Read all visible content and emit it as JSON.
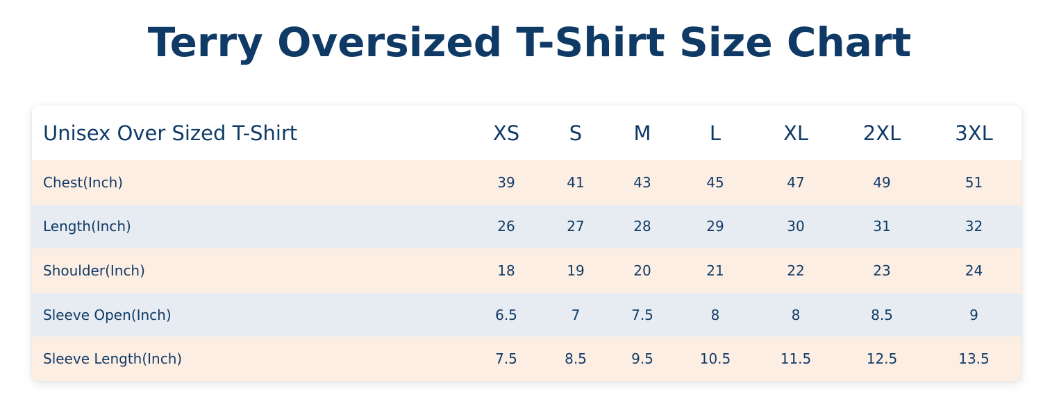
{
  "title": "Terry Oversized T-Shirt Size Chart",
  "table": {
    "header_label": "Unisex Over Sized T-Shirt",
    "sizes": [
      "XS",
      "S",
      "M",
      "L",
      "XL",
      "2XL",
      "3XL"
    ],
    "rows": [
      {
        "label": "Chest(Inch)",
        "values": [
          "39",
          "41",
          "43",
          "45",
          "47",
          "49",
          "51"
        ]
      },
      {
        "label": "Length(Inch)",
        "values": [
          "26",
          "27",
          "28",
          "29",
          "30",
          "31",
          "32"
        ]
      },
      {
        "label": "Shoulder(Inch)",
        "values": [
          "18",
          "19",
          "20",
          "21",
          "22",
          "23",
          "24"
        ]
      },
      {
        "label": "Sleeve Open(Inch)",
        "values": [
          "6.5",
          "7",
          "7.5",
          "8",
          "8",
          "8.5",
          "9"
        ]
      },
      {
        "label": "Sleeve Length(Inch)",
        "values": [
          "7.5",
          "8.5",
          "9.5",
          "10.5",
          "11.5",
          "12.5",
          "13.5"
        ]
      }
    ]
  },
  "colors": {
    "text": "#103a66",
    "row_peach": "#fdeee3",
    "row_gray": "#e6ecf1",
    "header_bg": "#ffffff"
  }
}
